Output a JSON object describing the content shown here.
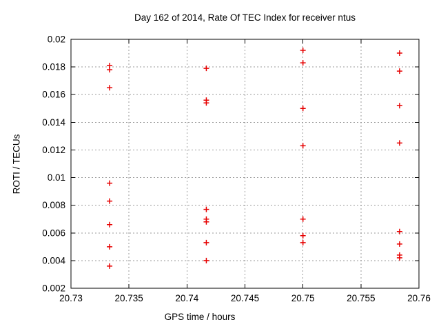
{
  "window": {
    "background": "#ffffff"
  },
  "chart_data": {
    "type": "scatter",
    "title": "Day 162 of 2014, Rate Of TEC Index for receiver ntus",
    "xlabel": "GPS time / hours",
    "ylabel": "ROTI / TECUs",
    "xlim": [
      20.73,
      20.76
    ],
    "ylim": [
      0.002,
      0.02
    ],
    "x_ticks": [
      20.73,
      20.735,
      20.74,
      20.745,
      20.75,
      20.755,
      20.76
    ],
    "x_tick_labels": [
      "20.73",
      "20.735",
      "20.74",
      "20.745",
      "20.75",
      "20.755",
      "20.76"
    ],
    "y_ticks": [
      0.002,
      0.004,
      0.006,
      0.008,
      0.01,
      0.012,
      0.014,
      0.016,
      0.018,
      0.02
    ],
    "y_tick_labels": [
      "0.002",
      "0.004",
      "0.006",
      "0.008",
      "0.01",
      "0.012",
      "0.014",
      "0.016",
      "0.018",
      "0.02"
    ],
    "grid": true,
    "legend": "none",
    "marker": "plus",
    "series": [
      {
        "name": "ROTI",
        "points": [
          [
            20.73333,
            0.0181
          ],
          [
            20.73333,
            0.0178
          ],
          [
            20.73333,
            0.0165
          ],
          [
            20.73333,
            0.0096
          ],
          [
            20.73333,
            0.0083
          ],
          [
            20.73333,
            0.0066
          ],
          [
            20.73333,
            0.005
          ],
          [
            20.73333,
            0.0036
          ],
          [
            20.74167,
            0.0179
          ],
          [
            20.74167,
            0.0156
          ],
          [
            20.74167,
            0.0154
          ],
          [
            20.74167,
            0.0077
          ],
          [
            20.74167,
            0.007
          ],
          [
            20.74167,
            0.0068
          ],
          [
            20.74167,
            0.0053
          ],
          [
            20.74167,
            0.004
          ],
          [
            20.75,
            0.0192
          ],
          [
            20.75,
            0.0183
          ],
          [
            20.75,
            0.015
          ],
          [
            20.75,
            0.0123
          ],
          [
            20.75,
            0.007
          ],
          [
            20.75,
            0.0058
          ],
          [
            20.75,
            0.0053
          ],
          [
            20.75833,
            0.019
          ],
          [
            20.75833,
            0.0177
          ],
          [
            20.75833,
            0.0152
          ],
          [
            20.75833,
            0.0125
          ],
          [
            20.75833,
            0.0061
          ],
          [
            20.75833,
            0.0052
          ],
          [
            20.75833,
            0.0044
          ],
          [
            20.75833,
            0.0042
          ]
        ]
      }
    ]
  },
  "colors": {
    "marker": "#e60000",
    "grid": "#999999",
    "axis": "#000000",
    "text": "#000000",
    "background": "#ffffff"
  }
}
